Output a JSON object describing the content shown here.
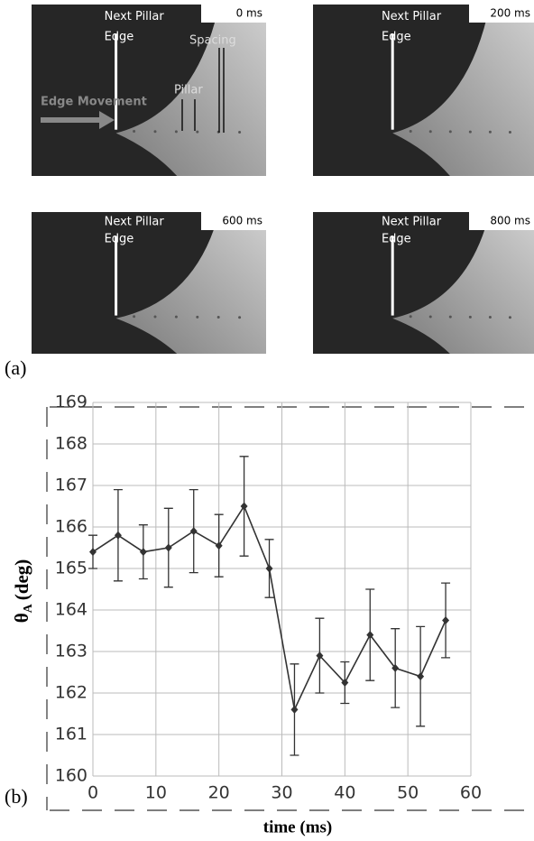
{
  "panel_a": {
    "label": "(a)",
    "frames": [
      {
        "time": "0 ms",
        "annotation": [
          "Next Pillar",
          "Edge"
        ]
      },
      {
        "time": "200 ms",
        "annotation": [
          "Next Pillar",
          "Edge"
        ]
      },
      {
        "time": "600 ms",
        "annotation": [
          "Next Pillar",
          "Edge"
        ]
      },
      {
        "time": "800 ms",
        "annotation": [
          "Next Pillar",
          "Edge"
        ]
      }
    ],
    "annotations": {
      "spacing": "Spacing",
      "pillar": "Pillar",
      "edge_movement": "Edge Movement"
    }
  },
  "chart_data": {
    "type": "line",
    "panel_label": "(b)",
    "x_label": "time (ms)",
    "y_label": {
      "symbol": "θ",
      "subscript": "A",
      "text": "(deg)"
    },
    "x": [
      0,
      4,
      8,
      12,
      16,
      20,
      24,
      28,
      32,
      36,
      40,
      44,
      48,
      52,
      56
    ],
    "series": [
      {
        "color": "#333333",
        "values": [
          165.4,
          165.8,
          165.4,
          165.5,
          165.9,
          165.55,
          166.5,
          165.0,
          161.6,
          162.9,
          162.25,
          163.4,
          162.6,
          162.4,
          163.75
        ],
        "errors": [
          0.4,
          1.1,
          0.65,
          0.95,
          1.0,
          0.75,
          1.2,
          0.7,
          1.1,
          0.9,
          0.5,
          1.1,
          0.95,
          1.2,
          0.9
        ]
      }
    ],
    "xlim": [
      0,
      60
    ],
    "xticks": [
      0,
      10,
      20,
      30,
      40,
      50,
      60
    ],
    "ylim": [
      160,
      169
    ],
    "yticks": [
      160,
      161,
      162,
      163,
      164,
      165,
      166,
      167,
      168,
      169
    ],
    "grid": true
  }
}
